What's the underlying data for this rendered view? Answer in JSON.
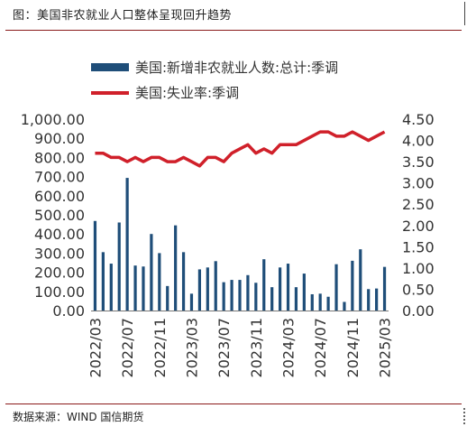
{
  "figure": {
    "title": "图：美国非农就业人口整体呈现回升趋势",
    "source": "数据来源：WIND 国信期货"
  },
  "colors": {
    "bar": "#1f4e79",
    "line": "#d0202a",
    "rule": "#8a1a1a"
  },
  "chart_data": {
    "type": "bar+line",
    "legend": [
      {
        "label": "美国:新增非农就业人数:总计:季调",
        "kind": "bar"
      },
      {
        "label": "美国:失业率:季调",
        "kind": "line"
      }
    ],
    "left_axis": {
      "ylim": [
        0,
        1000
      ],
      "ticks": [
        0,
        100,
        200,
        300,
        400,
        500,
        600,
        700,
        800,
        900,
        1000
      ],
      "tick_labels": [
        "0.00",
        "100.00",
        "200.00",
        "300.00",
        "400.00",
        "500.00",
        "600.00",
        "700.00",
        "800.00",
        "900.00",
        "1,000.00"
      ]
    },
    "right_axis": {
      "ylim": [
        0,
        4.5
      ],
      "ticks": [
        0,
        0.5,
        1,
        1.5,
        2,
        2.5,
        3,
        3.5,
        4,
        4.5
      ],
      "tick_labels": [
        "0.00",
        "0.50",
        "1.00",
        "1.50",
        "2.00",
        "2.50",
        "3.00",
        "3.50",
        "4.00",
        "4.50"
      ]
    },
    "x_labels": [
      "2022/03",
      "2022/07",
      "2022/11",
      "2023/03",
      "2023/07",
      "2023/11",
      "2024/03",
      "2024/07",
      "2024/11",
      "2025/03"
    ],
    "x": [
      "2022/03",
      "2022/04",
      "2022/05",
      "2022/06",
      "2022/07",
      "2022/08",
      "2022/09",
      "2022/10",
      "2022/11",
      "2022/12",
      "2023/01",
      "2023/02",
      "2023/03",
      "2023/04",
      "2023/05",
      "2023/06",
      "2023/07",
      "2023/08",
      "2023/09",
      "2023/10",
      "2023/11",
      "2023/12",
      "2024/01",
      "2024/02",
      "2024/03",
      "2024/04",
      "2024/05",
      "2024/06",
      "2024/07",
      "2024/08",
      "2024/09",
      "2024/10",
      "2024/11",
      "2024/12",
      "2025/01",
      "2025/02",
      "2025/03"
    ],
    "series": [
      {
        "name": "美国:新增非农就业人数:总计:季调",
        "type": "bar",
        "axis": "left",
        "values": [
          468,
          305,
          245,
          460,
          693,
          235,
          230,
          400,
          300,
          128,
          445,
          305,
          88,
          215,
          225,
          258,
          148,
          160,
          160,
          185,
          145,
          268,
          122,
          225,
          245,
          122,
          193,
          85,
          88,
          72,
          242,
          45,
          260,
          320,
          112,
          115,
          228
        ]
      },
      {
        "name": "美国:失业率:季调",
        "type": "line",
        "axis": "right",
        "values": [
          3.7,
          3.7,
          3.6,
          3.6,
          3.5,
          3.6,
          3.5,
          3.6,
          3.6,
          3.5,
          3.5,
          3.6,
          3.5,
          3.4,
          3.6,
          3.6,
          3.5,
          3.7,
          3.8,
          3.9,
          3.7,
          3.8,
          3.7,
          3.9,
          3.9,
          3.9,
          4.0,
          4.1,
          4.2,
          4.2,
          4.1,
          4.1,
          4.2,
          4.1,
          4.0,
          4.1,
          4.2
        ]
      }
    ]
  }
}
